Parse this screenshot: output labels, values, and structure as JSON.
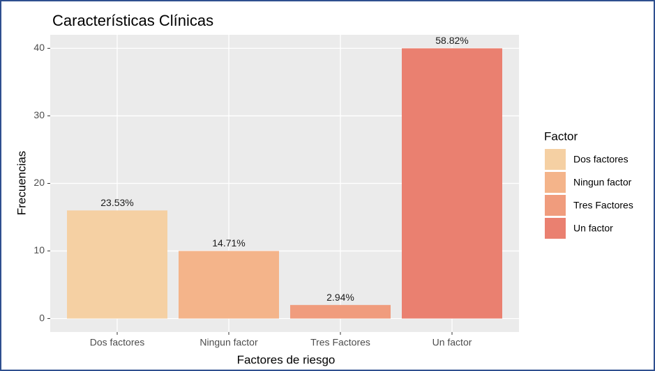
{
  "chart_data": {
    "type": "bar",
    "title": "Características Clínicas",
    "x_label": "Factores de riesgo",
    "y_label": "Frecuencias",
    "categories": [
      "Dos factores",
      "Ningun factor",
      "Tres Factores",
      "Un factor"
    ],
    "values": [
      16,
      10,
      2,
      40
    ],
    "annotations": [
      "23.53%",
      "14.71%",
      "2.94%",
      "58.82%"
    ],
    "colors": [
      "#f5d0a3",
      "#f4b48a",
      "#f09c7d",
      "#ea8070"
    ],
    "ylim": [
      -2,
      42
    ],
    "yticks": [
      0,
      10,
      20,
      30,
      40
    ],
    "grid": true,
    "legend_title": "Factor",
    "legend_position": "right"
  }
}
